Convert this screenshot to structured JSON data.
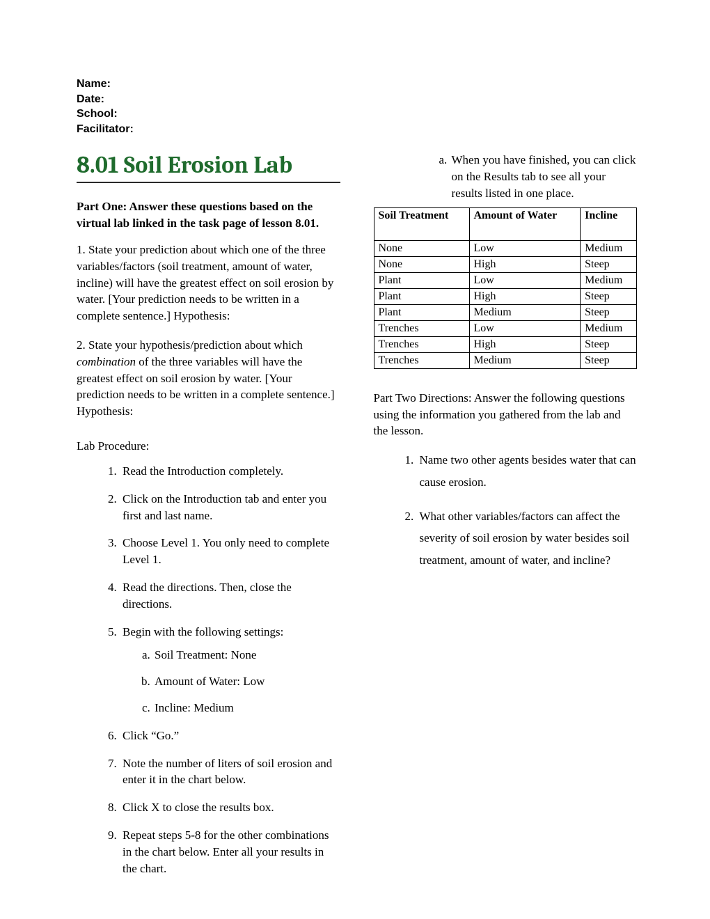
{
  "header": {
    "name_label": "Name:",
    "date_label": "Date:",
    "school_label": "School:",
    "facilitator_label": "Facilitator:"
  },
  "title": "8.01 Soil Erosion Lab",
  "part_one": {
    "heading": "Part One: Answer these questions based on the virtual lab linked in the task page of lesson 8.01.",
    "q1": "1. State your prediction about which one of the three variables/factors (soil treatment, amount of water, incline) will have the greatest effect on soil erosion by water. [Your prediction needs to be written in a complete sentence.] Hypothesis:",
    "q2_pre": "2. State your hypothesis/prediction about which ",
    "q2_em": "combination",
    "q2_post": " of the three variables will have the greatest effect on soil erosion by water. [Your prediction needs to be written in a complete sentence.] Hypothesis:"
  },
  "lab": {
    "label": "Lab Procedure:",
    "steps": {
      "s1": "Read the Introduction completely.",
      "s2": "Click on the Introduction tab and enter you first and last name.",
      "s3": "Choose Level 1. You only need to complete Level 1.",
      "s4": "Read the directions. Then, close the directions.",
      "s5": "Begin with the following settings:",
      "s5a": "Soil Treatment: None",
      "s5b": "Amount of Water: Low",
      "s5c": "Incline: Medium",
      "s6": "Click “Go.”",
      "s7": "Note the number of liters of soil erosion and enter it in the chart below.",
      "s8": "Click X to close the results box.",
      "s9": "Repeat steps 5-8 for the other combinations in the chart below. Enter all your results in the chart.",
      "s9a": "When you have finished, you can click on the Results tab to see all your results listed in one place."
    }
  },
  "table": {
    "headers": {
      "c1": "Soil Treatment",
      "c2": "Amount of Water",
      "c3": "Incline"
    },
    "rows": [
      {
        "c1": "None",
        "c2": "Low",
        "c3": "Medium"
      },
      {
        "c1": "None",
        "c2": "High",
        "c3": "Steep"
      },
      {
        "c1": "Plant",
        "c2": "Low",
        "c3": "Medium"
      },
      {
        "c1": "Plant",
        "c2": "High",
        "c3": "Steep"
      },
      {
        "c1": "Plant",
        "c2": "Medium",
        "c3": "Steep"
      },
      {
        "c1": "Trenches",
        "c2": "Low",
        "c3": "Medium"
      },
      {
        "c1": "Trenches",
        "c2": "High",
        "c3": "Steep"
      },
      {
        "c1": "Trenches",
        "c2": "Medium",
        "c3": "Steep"
      }
    ]
  },
  "part_two": {
    "heading": "Part Two Directions: Answer the following questions using the information you gathered from the lab and the lesson.",
    "q1": "Name two other agents besides water that can cause erosion.",
    "q2": "What other variables/factors can affect the severity of soil erosion by water besides soil treatment, amount of water, and incline?"
  }
}
